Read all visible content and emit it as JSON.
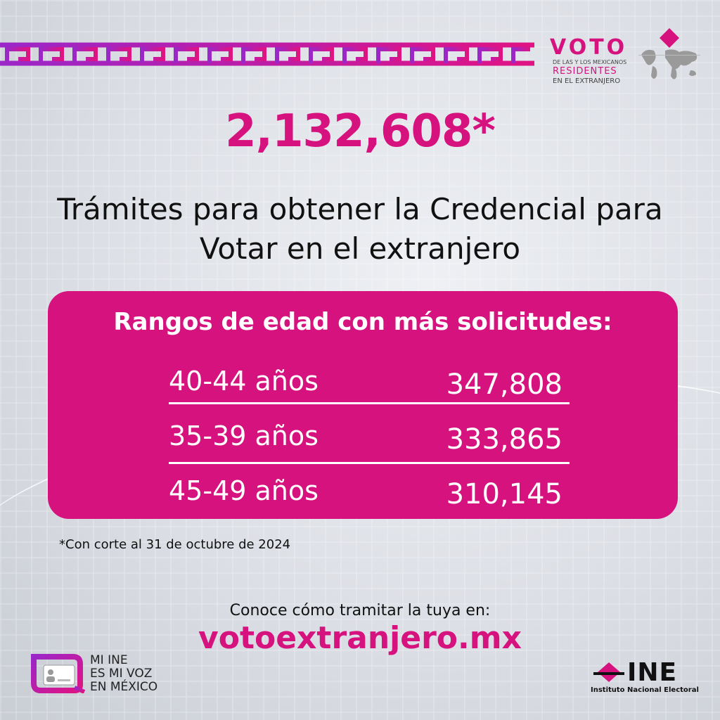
{
  "brand": {
    "accent_color": "#d6127e",
    "voto_word": "VOTO",
    "voto_line1": "DE LAS Y LOS MEXICANOS",
    "voto_line2": "RESIDENTES",
    "voto_line3": "EN EL EXTRANJERO"
  },
  "headline": {
    "number": "2,132,608*",
    "subtitle": "Trámites para obtener la Credencial para Votar en el extranjero"
  },
  "card": {
    "title": "Rangos de edad con más solicitudes:",
    "rows": [
      {
        "age": "40-44 años",
        "count": "347,808"
      },
      {
        "age": "35-39 años",
        "count": "333,865"
      },
      {
        "age": "45-49 años",
        "count": "310,145"
      }
    ]
  },
  "footnote": "*Con corte al 31 de octubre de 2024",
  "cta": {
    "text": "Conoce cómo tramitar la tuya en:",
    "url": "votoextranjero.mx"
  },
  "mi_ine": {
    "line1": "MI INE",
    "line2": "ES MI VOZ",
    "line3": "EN MÉXICO"
  },
  "ine": {
    "word": "INE",
    "name": "Instituto Nacional Electoral"
  }
}
